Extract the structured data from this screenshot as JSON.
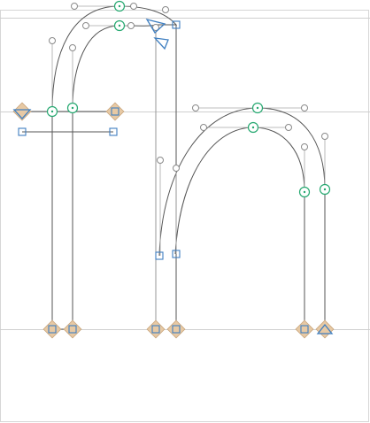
{
  "editor": {
    "glyph_text": "fn",
    "colors": {
      "outline": "#555555",
      "smooth_node": "#25a870",
      "corner_node": "#3f7fc1",
      "anchor_marker": "#e7c9a4",
      "metric_line": "#cfcfcf",
      "handle": "#8a8a8a"
    },
    "icons": {
      "smooth_node": "green-circle-node",
      "corner_node": "blue-square-node",
      "start_point": "blue-triangle-start-marker",
      "anchor": "tan-diamond-anchor"
    }
  }
}
